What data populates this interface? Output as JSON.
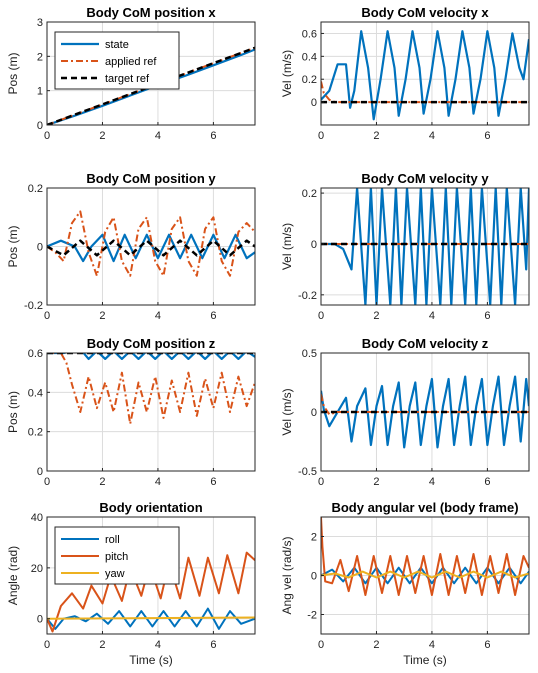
{
  "colors": {
    "state": "#0072BD",
    "applied_ref": "#D95319",
    "target_ref": "#000000",
    "yaw": "#EDB120",
    "grid": "#dcdcdc"
  },
  "chart_data": [
    {
      "type": "line",
      "title": "Body CoM position x",
      "xlabel": "",
      "ylabel": "Pos (m)",
      "xlim": [
        0,
        7.5
      ],
      "ylim": [
        0,
        3
      ],
      "xticks": [
        "0",
        "2",
        "4",
        "6"
      ],
      "yticks": [
        "0",
        "1",
        "2",
        "3"
      ],
      "legend": {
        "position": "top-left",
        "entries": [
          "state",
          "applied ref",
          "target ref"
        ]
      },
      "series": [
        {
          "name": "state",
          "x": [
            0,
            1,
            2,
            3,
            4,
            5,
            6,
            7,
            7.5
          ],
          "values": [
            0,
            0.27,
            0.56,
            0.86,
            1.16,
            1.44,
            1.74,
            2.04,
            2.2
          ]
        },
        {
          "name": "applied ref",
          "x": [
            0,
            1,
            2,
            3,
            4,
            5,
            6,
            7,
            7.5
          ],
          "values": [
            0,
            0.3,
            0.6,
            0.9,
            1.2,
            1.5,
            1.8,
            2.1,
            2.25
          ]
        },
        {
          "name": "target ref",
          "x": [
            0,
            1,
            2,
            3,
            4,
            5,
            6,
            7,
            7.5
          ],
          "values": [
            0,
            0.3,
            0.6,
            0.9,
            1.2,
            1.5,
            1.8,
            2.1,
            2.25
          ]
        }
      ]
    },
    {
      "type": "line",
      "title": "Body CoM velocity x",
      "xlabel": "",
      "ylabel": "Vel (m/s)",
      "xlim": [
        0,
        7.5
      ],
      "ylim": [
        -0.2,
        0.7
      ],
      "xticks": [
        "0",
        "2",
        "4",
        "6"
      ],
      "yticks": [
        "0",
        "0.2",
        "0.4",
        "0.6"
      ],
      "series": [
        {
          "name": "state",
          "x": [
            0,
            0.3,
            0.6,
            0.9,
            1.05,
            1.2,
            1.45,
            1.7,
            1.9,
            2.15,
            2.4,
            2.65,
            2.8,
            3.05,
            3.3,
            3.55,
            3.7,
            3.95,
            4.2,
            4.45,
            4.6,
            4.85,
            5.1,
            5.35,
            5.5,
            5.75,
            6.0,
            6.25,
            6.4,
            6.65,
            6.9,
            7.15,
            7.3,
            7.5
          ],
          "values": [
            0.02,
            0.1,
            0.33,
            0.33,
            -0.05,
            0.1,
            0.62,
            0.3,
            -0.15,
            0.2,
            0.62,
            0.3,
            -0.12,
            0.2,
            0.62,
            0.3,
            -0.1,
            0.2,
            0.62,
            0.3,
            -0.12,
            0.2,
            0.62,
            0.3,
            -0.1,
            0.2,
            0.62,
            0.3,
            -0.12,
            0.2,
            0.6,
            0.3,
            0.2,
            0.55
          ]
        },
        {
          "name": "applied ref",
          "x": [
            0,
            0.1,
            0.3,
            0.5,
            0.7,
            7.5
          ],
          "values": [
            0.18,
            0.08,
            0.02,
            0.0,
            0.0,
            0.0
          ]
        },
        {
          "name": "target ref",
          "x": [
            0,
            7.5
          ],
          "values": [
            0,
            0
          ]
        }
      ]
    },
    {
      "type": "line",
      "title": "Body CoM position y",
      "xlabel": "",
      "ylabel": "Pos (m)",
      "xlim": [
        0,
        7.5
      ],
      "ylim": [
        -0.2,
        0.2
      ],
      "xticks": [
        "0",
        "2",
        "4",
        "6"
      ],
      "yticks": [
        "-0.2",
        "0",
        "0.2"
      ],
      "series": [
        {
          "name": "state",
          "x": [
            0,
            0.5,
            1.0,
            1.3,
            1.6,
            2.0,
            2.4,
            2.8,
            3.2,
            3.6,
            4.0,
            4.4,
            4.8,
            5.2,
            5.6,
            6.0,
            6.4,
            6.8,
            7.2,
            7.5
          ],
          "values": [
            0.0,
            0.02,
            0.0,
            -0.05,
            0.0,
            0.04,
            -0.05,
            0.04,
            -0.04,
            0.04,
            -0.04,
            0.04,
            -0.04,
            0.04,
            -0.04,
            0.04,
            -0.04,
            0.04,
            -0.04,
            -0.02
          ]
        },
        {
          "name": "applied ref",
          "x": [
            0,
            0.3,
            0.6,
            0.9,
            1.2,
            1.5,
            1.8,
            2.1,
            2.4,
            2.7,
            3.0,
            3.3,
            3.6,
            3.9,
            4.2,
            4.5,
            4.8,
            5.1,
            5.4,
            5.7,
            6.0,
            6.3,
            6.6,
            6.9,
            7.2,
            7.5
          ],
          "values": [
            0.0,
            -0.02,
            -0.05,
            0.08,
            0.12,
            -0.02,
            -0.1,
            0.05,
            0.1,
            -0.05,
            -0.1,
            0.06,
            0.1,
            -0.05,
            -0.1,
            0.06,
            0.1,
            -0.05,
            -0.1,
            0.06,
            0.1,
            -0.05,
            -0.1,
            0.05,
            0.08,
            0.05
          ]
        },
        {
          "name": "target ref",
          "x": [
            0,
            0.6,
            1.2,
            1.8,
            2.4,
            3.0,
            3.6,
            4.2,
            4.8,
            5.4,
            6.0,
            6.6,
            7.2,
            7.5
          ],
          "values": [
            0,
            -0.03,
            0.02,
            -0.03,
            0.02,
            -0.03,
            0.02,
            -0.03,
            0.02,
            -0.03,
            0.02,
            -0.03,
            0.02,
            0.0
          ]
        }
      ]
    },
    {
      "type": "line",
      "title": "Body CoM velocity y",
      "xlabel": "",
      "ylabel": "Vel (m/s)",
      "xlim": [
        0,
        7.5
      ],
      "ylim": [
        -0.24,
        0.22
      ],
      "xticks": [
        "0",
        "2",
        "4",
        "6"
      ],
      "yticks": [
        "-0.2",
        "0",
        "0.2"
      ],
      "series": [
        {
          "name": "state",
          "x": [
            0,
            0.5,
            0.8,
            1.1,
            1.3,
            1.6,
            1.8,
            2.0,
            2.2,
            2.5,
            2.7,
            2.9,
            3.1,
            3.4,
            3.6,
            3.8,
            4.0,
            4.3,
            4.5,
            4.7,
            4.9,
            5.2,
            5.4,
            5.6,
            5.8,
            6.1,
            6.3,
            6.5,
            6.7,
            7.0,
            7.2,
            7.4,
            7.5
          ],
          "values": [
            0.0,
            0.0,
            -0.02,
            -0.1,
            0.22,
            -0.24,
            0.22,
            -0.24,
            0.22,
            -0.24,
            0.22,
            -0.24,
            0.22,
            -0.24,
            0.22,
            -0.24,
            0.22,
            -0.24,
            0.22,
            -0.24,
            0.22,
            -0.24,
            0.22,
            -0.24,
            0.22,
            -0.24,
            0.22,
            -0.24,
            0.22,
            -0.24,
            0.22,
            -0.1,
            0.22
          ]
        },
        {
          "name": "applied ref",
          "x": [
            0,
            7.5
          ],
          "values": [
            0,
            0
          ]
        },
        {
          "name": "target ref",
          "x": [
            0,
            7.5
          ],
          "values": [
            0,
            0
          ]
        }
      ]
    },
    {
      "type": "line",
      "title": "Body CoM position z",
      "xlabel": "",
      "ylabel": "Pos (m)",
      "xlim": [
        0,
        7.5
      ],
      "ylim": [
        0,
        0.6
      ],
      "xticks": [
        "0",
        "2",
        "4",
        "6"
      ],
      "yticks": [
        "0",
        "0.2",
        "0.4",
        "0.6"
      ],
      "series": [
        {
          "name": "state",
          "x": [
            0,
            0.6,
            1.2,
            1.5,
            1.8,
            2.1,
            2.4,
            2.7,
            3.0,
            3.3,
            3.6,
            3.9,
            4.2,
            4.5,
            4.8,
            5.1,
            5.4,
            5.7,
            6.0,
            6.3,
            6.6,
            6.9,
            7.2,
            7.5
          ],
          "values": [
            0.6,
            0.6,
            0.62,
            0.57,
            0.61,
            0.57,
            0.61,
            0.57,
            0.61,
            0.57,
            0.61,
            0.57,
            0.61,
            0.57,
            0.61,
            0.57,
            0.61,
            0.57,
            0.61,
            0.57,
            0.61,
            0.57,
            0.61,
            0.58
          ]
        },
        {
          "name": "applied ref",
          "x": [
            0,
            0.5,
            0.7,
            0.9,
            1.2,
            1.5,
            1.8,
            2.1,
            2.4,
            2.7,
            3.0,
            3.3,
            3.6,
            3.9,
            4.2,
            4.5,
            4.8,
            5.1,
            5.4,
            5.7,
            6.0,
            6.3,
            6.6,
            6.9,
            7.2,
            7.5
          ],
          "values": [
            0.6,
            0.6,
            0.55,
            0.44,
            0.3,
            0.48,
            0.32,
            0.45,
            0.3,
            0.5,
            0.24,
            0.45,
            0.3,
            0.48,
            0.27,
            0.46,
            0.3,
            0.5,
            0.28,
            0.47,
            0.32,
            0.5,
            0.3,
            0.48,
            0.33,
            0.45
          ]
        },
        {
          "name": "target ref",
          "x": [
            0,
            7.5
          ],
          "values": [
            0.6,
            0.6
          ]
        }
      ]
    },
    {
      "type": "line",
      "title": "Body CoM velocity z",
      "xlabel": "",
      "ylabel": "Vel (m/s)",
      "xlim": [
        0,
        7.5
      ],
      "ylim": [
        -0.5,
        0.5
      ],
      "xticks": [
        "0",
        "2",
        "4",
        "6"
      ],
      "yticks": [
        "-0.5",
        "0",
        "0.5"
      ],
      "series": [
        {
          "name": "state",
          "x": [
            0,
            0.1,
            0.3,
            0.6,
            0.9,
            1.1,
            1.3,
            1.6,
            1.8,
            2.0,
            2.2,
            2.4,
            2.6,
            2.8,
            3.0,
            3.2,
            3.4,
            3.6,
            3.8,
            4.0,
            4.2,
            4.4,
            4.6,
            4.8,
            5.0,
            5.2,
            5.4,
            5.6,
            5.8,
            6.0,
            6.2,
            6.4,
            6.6,
            6.8,
            7.0,
            7.2,
            7.4,
            7.5
          ],
          "values": [
            0.18,
            0.02,
            -0.12,
            0.0,
            0.12,
            -0.25,
            0.05,
            0.2,
            -0.28,
            0.05,
            0.22,
            -0.28,
            0.05,
            0.25,
            -0.3,
            0.05,
            0.25,
            -0.28,
            0.05,
            0.28,
            -0.3,
            0.05,
            0.28,
            -0.28,
            0.05,
            0.3,
            -0.28,
            0.05,
            0.28,
            -0.28,
            0.05,
            0.3,
            -0.28,
            0.05,
            0.3,
            -0.25,
            0.28,
            0.05
          ]
        },
        {
          "name": "applied ref",
          "x": [
            0,
            0.1,
            0.3,
            0.6,
            7.5
          ],
          "values": [
            0.15,
            0.05,
            -0.02,
            0.0,
            0.0
          ]
        },
        {
          "name": "target ref",
          "x": [
            0,
            7.5
          ],
          "values": [
            0,
            0
          ]
        }
      ]
    },
    {
      "type": "line",
      "title": "Body orientation",
      "xlabel": "Time (s)",
      "ylabel": "Angle (rad)",
      "xlim": [
        0,
        7.5
      ],
      "ylim": [
        -6,
        40
      ],
      "xticks": [
        "0",
        "2",
        "4",
        "6"
      ],
      "yticks": [
        "0",
        "20",
        "40"
      ],
      "legend": {
        "position": "top-left",
        "entries": [
          "roll",
          "pitch",
          "yaw"
        ]
      },
      "series": [
        {
          "name": "roll",
          "x": [
            0,
            0.3,
            0.6,
            1.0,
            1.4,
            1.8,
            2.2,
            2.6,
            3.0,
            3.4,
            3.8,
            4.2,
            4.6,
            5.0,
            5.4,
            5.8,
            6.2,
            6.6,
            7.0,
            7.5
          ],
          "values": [
            0,
            -4,
            0,
            1,
            -1,
            2,
            -2,
            3,
            -3,
            3,
            -3,
            3,
            -3,
            3,
            -3,
            4,
            -4,
            3,
            -2,
            0
          ]
        },
        {
          "name": "pitch",
          "x": [
            0,
            0.2,
            0.5,
            0.9,
            1.3,
            1.6,
            2.0,
            2.3,
            2.7,
            3.0,
            3.4,
            3.7,
            4.1,
            4.4,
            4.8,
            5.1,
            5.5,
            5.8,
            6.2,
            6.5,
            6.9,
            7.2,
            7.5
          ],
          "values": [
            0,
            -5,
            5,
            10,
            4,
            13,
            6,
            17,
            7,
            20,
            9,
            21,
            8,
            22,
            8,
            24,
            9,
            24,
            10,
            25,
            10,
            26,
            23
          ]
        },
        {
          "name": "yaw",
          "x": [
            0,
            7.5
          ],
          "values": [
            0,
            0.5
          ]
        }
      ]
    },
    {
      "type": "line",
      "title": "Body angular vel (body frame)",
      "xlabel": "Time (s)",
      "ylabel": "Ang vel (rad/s)",
      "xlim": [
        0,
        7.5
      ],
      "ylim": [
        -3,
        3
      ],
      "xticks": [
        "0",
        "2",
        "4",
        "6"
      ],
      "yticks": [
        "-2",
        "0",
        "2"
      ],
      "series": [
        {
          "name": "roll",
          "x": [
            0,
            0.4,
            0.8,
            1.2,
            1.6,
            2.0,
            2.4,
            2.8,
            3.2,
            3.6,
            4.0,
            4.4,
            4.8,
            5.2,
            5.6,
            6.0,
            6.4,
            6.8,
            7.2,
            7.5
          ],
          "values": [
            0,
            0.3,
            -0.3,
            0.4,
            -0.4,
            0.4,
            -0.4,
            0.4,
            -0.4,
            0.4,
            -0.4,
            0.4,
            -0.4,
            0.4,
            -0.4,
            0.4,
            -0.4,
            0.4,
            -0.4,
            0.2
          ]
        },
        {
          "name": "pitch",
          "x": [
            0,
            0.05,
            0.15,
            0.4,
            0.7,
            1.0,
            1.3,
            1.6,
            1.9,
            2.2,
            2.5,
            2.8,
            3.1,
            3.4,
            3.7,
            4.0,
            4.3,
            4.6,
            4.9,
            5.2,
            5.5,
            5.8,
            6.1,
            6.4,
            6.7,
            7.0,
            7.3,
            7.5
          ],
          "values": [
            3,
            1.5,
            -0.3,
            -0.4,
            0.8,
            -0.8,
            1.0,
            -1.0,
            1.0,
            -0.9,
            1.0,
            -1.0,
            1.0,
            -0.9,
            1.0,
            -1.0,
            1.1,
            -1.0,
            1.0,
            -0.9,
            1.1,
            -1.0,
            1.0,
            -0.9,
            1.1,
            -1.0,
            1.0,
            0.4
          ]
        },
        {
          "name": "yaw",
          "x": [
            0,
            0.5,
            1.0,
            1.5,
            2.0,
            2.5,
            3.0,
            3.5,
            4.0,
            4.5,
            5.0,
            5.5,
            6.0,
            6.5,
            7.0,
            7.5
          ],
          "values": [
            0,
            0.1,
            -0.1,
            0.2,
            -0.1,
            0.2,
            -0.1,
            0.2,
            -0.1,
            0.2,
            -0.1,
            0.2,
            -0.1,
            0.2,
            -0.1,
            0.1
          ]
        }
      ]
    }
  ]
}
